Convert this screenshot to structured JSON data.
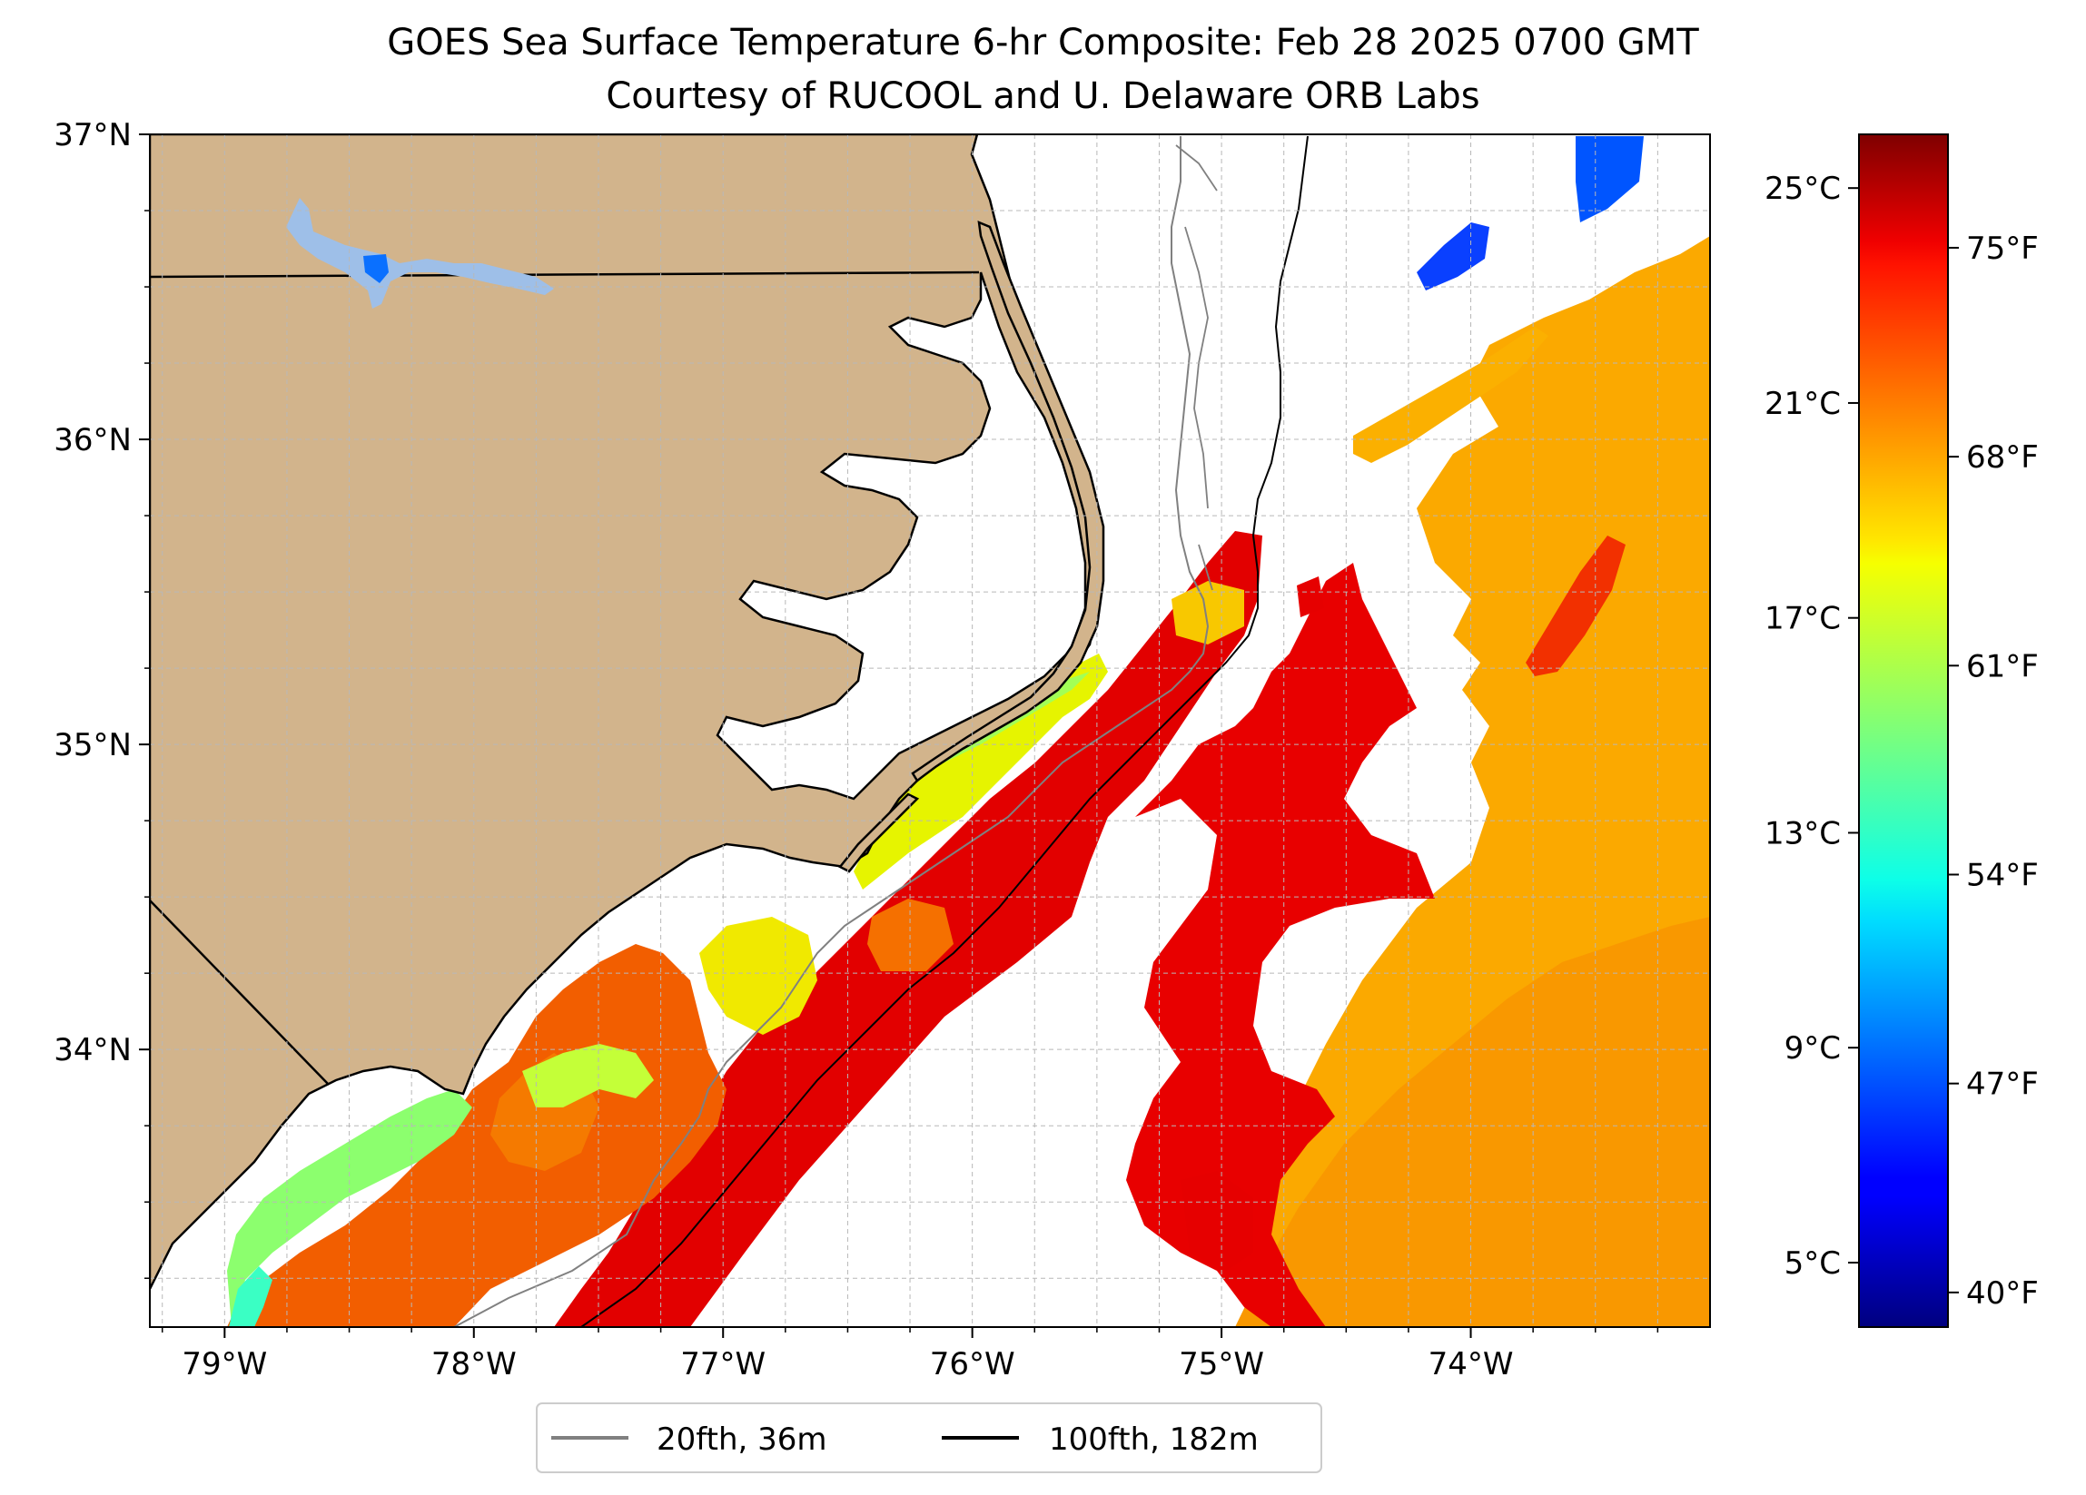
{
  "title": {
    "line1": "GOES Sea Surface Temperature 6-hr Composite: Feb 28 2025 0700 GMT",
    "line2": "Courtesy of RUCOOL and U. Delaware ORB Labs"
  },
  "chart_data": {
    "type": "heatmap",
    "map_extent": {
      "lon": [
        -79.3,
        -73.04
      ],
      "lat": [
        33.09,
        37.0
      ]
    },
    "lat_ticks": [
      {
        "value": 37,
        "label": "37°N"
      },
      {
        "value": 36,
        "label": "36°N"
      },
      {
        "value": 35,
        "label": "35°N"
      },
      {
        "value": 34,
        "label": "34°N"
      }
    ],
    "lon_ticks": [
      {
        "value": -79,
        "label": "79°W"
      },
      {
        "value": -78,
        "label": "78°W"
      },
      {
        "value": -77,
        "label": "77°W"
      },
      {
        "value": -76,
        "label": "76°W"
      },
      {
        "value": -75,
        "label": "75°W"
      },
      {
        "value": -74,
        "label": "74°W"
      }
    ],
    "grid": true,
    "colorbar": {
      "range_c": [
        3.8,
        26.0
      ],
      "colormap": "jet",
      "celsius_ticks": [
        {
          "value": 25,
          "label": "25°C"
        },
        {
          "value": 21,
          "label": "21°C"
        },
        {
          "value": 17,
          "label": "17°C"
        },
        {
          "value": 13,
          "label": "13°C"
        },
        {
          "value": 9,
          "label": "9°C"
        },
        {
          "value": 5,
          "label": "5°C"
        }
      ],
      "fahrenheit_ticks": [
        {
          "value": 75,
          "label": "75°F"
        },
        {
          "value": 68,
          "label": "68°F"
        },
        {
          "value": 61,
          "label": "61°F"
        },
        {
          "value": 54,
          "label": "54°F"
        },
        {
          "value": 47,
          "label": "47°F"
        },
        {
          "value": 40,
          "label": "40°F"
        }
      ]
    },
    "legend": {
      "placement": "bottom-center",
      "entries": [
        {
          "label": "20fth, 36m",
          "color": "#808080"
        },
        {
          "label": "100fth, 182m",
          "color": "#000000"
        }
      ]
    },
    "colors": {
      "land": "#d2b48c",
      "coast": "#000000",
      "isobath_20fth": "#808080",
      "isobath_100fth": "#000000",
      "lakes": "#9ebfe8"
    }
  }
}
